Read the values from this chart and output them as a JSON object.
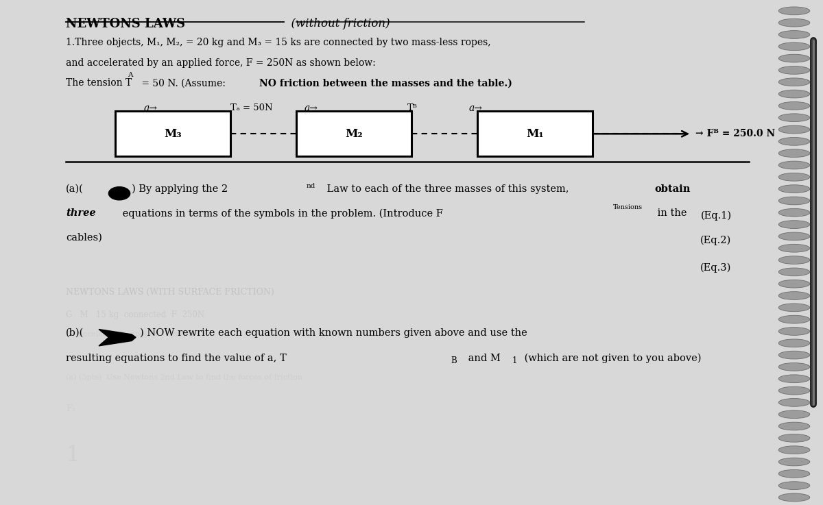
{
  "bg_color": "#d8d8d8",
  "paper_color": "#efefed",
  "title_bold": "NEWTONS LAWS",
  "title_normal": "  (without friction)",
  "para1_line1": "1.Three objects, M₁, M₂, = 20 kg and M₃ = 15 ks are connected by two mass-less ropes,",
  "para1_line2": "and accelerated by an applied force, F = 250N as shown below:",
  "para1_line3_prefix": "The tension T",
  "para1_line3_suffix": " = 50 N. (Assume: ",
  "para1_bold": "NO friction between the masses and the table.)",
  "box_labels": [
    "M₃",
    "M₂",
    "M₁"
  ],
  "tension_A_label": "Tₐ = 50N",
  "tension_B_label": "Tᴮ",
  "force_label": "→ Fᴮ = 250.0 N",
  "eq1": "(Eq.1)",
  "eq2": "(Eq.2)",
  "eq3": "(Eq.3)",
  "spiral_color": "#888888",
  "spiral_edge": "#555555",
  "pen_color_dark": "#111111",
  "pen_color_mid": "#444444"
}
